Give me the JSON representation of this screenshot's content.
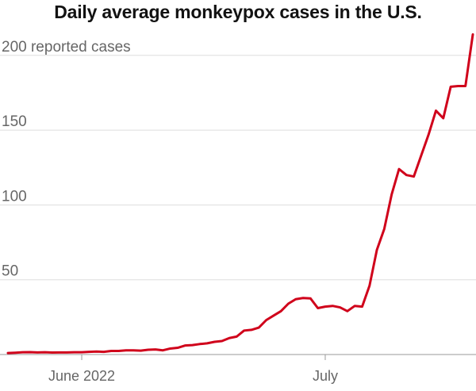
{
  "chart_data": {
    "type": "line",
    "title": "Daily average monkeypox cases in the U.S.",
    "ylabel": "",
    "xlabel": "",
    "unit_label": "reported cases",
    "ylim": [
      0,
      210
    ],
    "y_ticks": [
      {
        "value": 50,
        "label": "50"
      },
      {
        "value": 100,
        "label": "100"
      },
      {
        "value": 150,
        "label": "150"
      },
      {
        "value": 200,
        "label": "200"
      }
    ],
    "x_ticks": [
      {
        "index": 10,
        "label": "June 2022"
      },
      {
        "index": 43,
        "label": "July"
      }
    ],
    "grid": true,
    "line_color": "#d0021b",
    "series": [
      {
        "values": [
          1,
          1.2,
          1.5,
          1.6,
          1.4,
          1.5,
          1.3,
          1.4,
          1.4,
          1.5,
          1.5,
          1.8,
          2,
          1.8,
          2.4,
          2.4,
          2.8,
          2.8,
          2.6,
          3.2,
          3.4,
          2.8,
          4,
          4.5,
          6,
          6.3,
          7,
          7.5,
          8.5,
          9,
          11,
          12,
          16,
          16.5,
          18,
          23,
          26,
          29,
          34,
          37,
          37.8,
          37.5,
          31,
          32,
          32.5,
          31.5,
          29,
          32.5,
          32,
          46,
          70,
          84,
          107,
          124,
          120,
          119,
          133,
          147,
          163,
          158,
          179,
          179.5,
          179.5,
          214
        ]
      }
    ]
  }
}
